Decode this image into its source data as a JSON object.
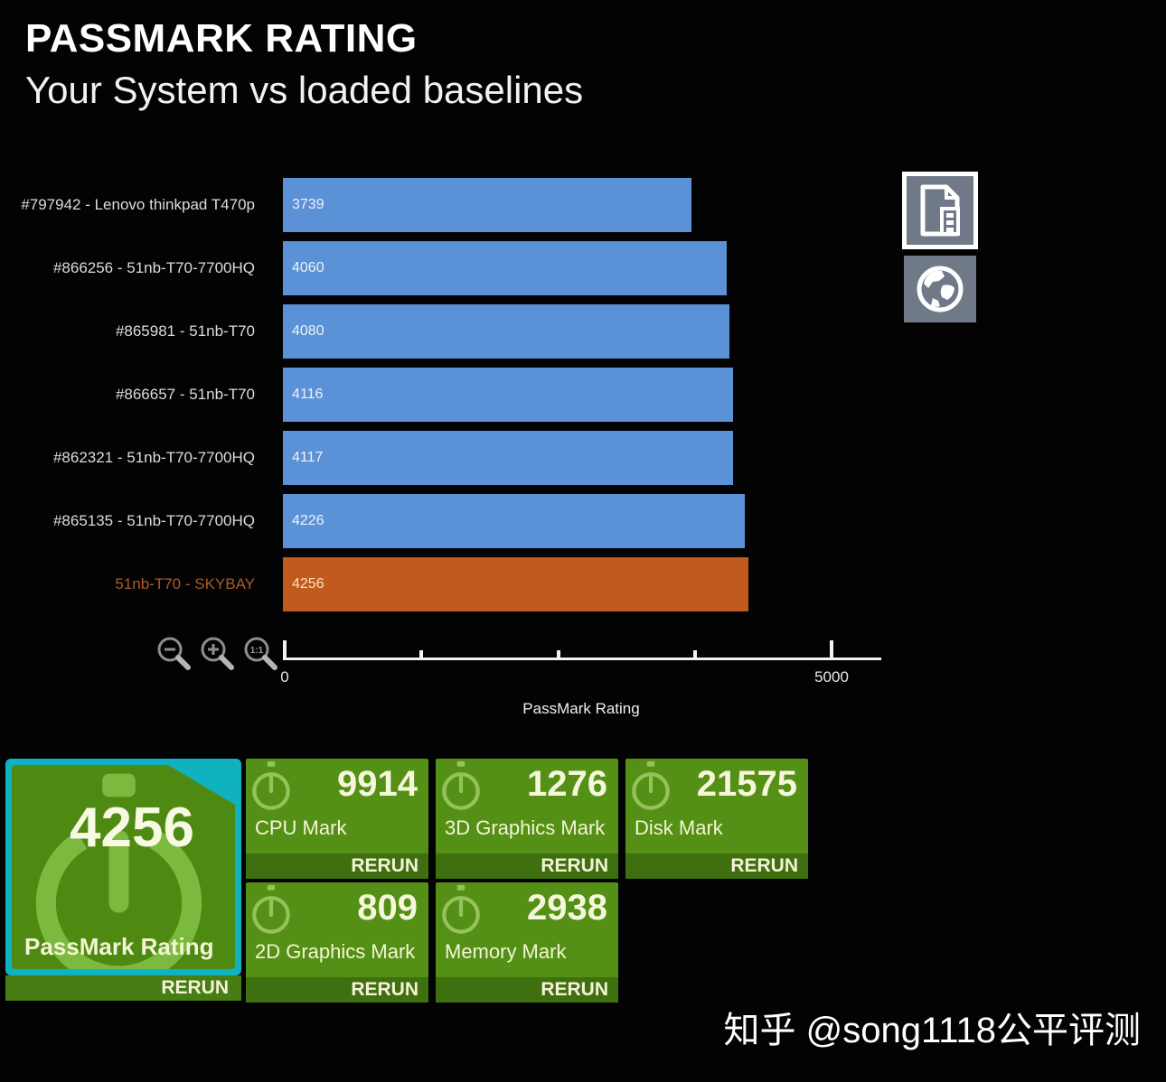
{
  "header": {
    "title": "PASSMARK RATING",
    "subtitle": "Your System vs loaded baselines"
  },
  "chart_data": {
    "type": "bar",
    "orientation": "horizontal",
    "title": "PASSMARK RATING",
    "subtitle": "Your System vs loaded baselines",
    "xlabel": "PassMark Rating",
    "axis": {
      "min": 0,
      "max": 5000,
      "ticks": [
        0,
        1250,
        2500,
        3750,
        5000
      ],
      "labeled_ticks": [
        0,
        5000
      ]
    },
    "bars": [
      {
        "label": "#797942 - Lenovo thinkpad T470p",
        "value": 3739,
        "highlight": false
      },
      {
        "label": "#866256 - 51nb-T70-7700HQ",
        "value": 4060,
        "highlight": false
      },
      {
        "label": "#865981 - 51nb-T70",
        "value": 4080,
        "highlight": false
      },
      {
        "label": "#866657 - 51nb-T70",
        "value": 4116,
        "highlight": false
      },
      {
        "label": "#862321 - 51nb-T70-7700HQ",
        "value": 4117,
        "highlight": false
      },
      {
        "label": "#865135 - 51nb-T70-7700HQ",
        "value": 4226,
        "highlight": false
      },
      {
        "label": "51nb-T70 - SKYBAY",
        "value": 4256,
        "highlight": true
      }
    ],
    "colors": {
      "baseline_bar": "#5b91d6",
      "highlight_bar": "#c2591d",
      "baseline_label": "#dcdcdc",
      "highlight_label": "#ad5a2a",
      "baseline_value_text": "#eef2f8",
      "highlight_value_text": "#f6e3c4"
    },
    "legend": "none",
    "grid": false
  },
  "icons": {
    "zoom_out": "magnifier-minus",
    "zoom_in": "magnifier-plus",
    "zoom_reset": "magnifier-1to1",
    "report": "report-document",
    "web": "globe",
    "tile": "stopwatch"
  },
  "summary": {
    "rating_tile": {
      "value": "4256",
      "label": "PassMark Rating",
      "rerun": "RERUN",
      "accent_color": "#10b2c0"
    },
    "tiles": [
      {
        "value": "9914",
        "label": "CPU Mark",
        "rerun": "RERUN"
      },
      {
        "value": "1276",
        "label": "3D Graphics Mark",
        "rerun": "RERUN"
      },
      {
        "value": "21575",
        "label": "Disk Mark",
        "rerun": "RERUN"
      },
      {
        "value": "809",
        "label": "2D Graphics Mark",
        "rerun": "RERUN"
      },
      {
        "value": "2938",
        "label": "Memory Mark",
        "rerun": "RERUN"
      }
    ],
    "tile_color": "#549016"
  },
  "watermark": {
    "text": "知乎 @song1118公平评测"
  }
}
